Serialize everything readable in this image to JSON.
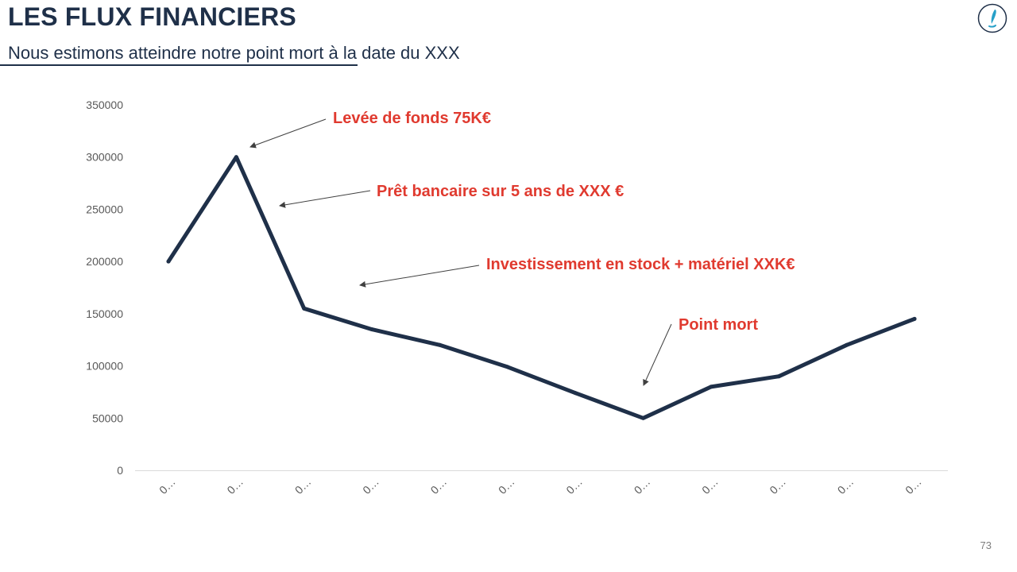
{
  "header": {
    "title": "LES FLUX FINANCIERS",
    "subtitle": "Nous estimons atteindre notre point mort à la date du XXX"
  },
  "logo": {
    "icon": "quill-icon"
  },
  "footer": {
    "page_number": "73"
  },
  "colors": {
    "title": "#1f3049",
    "line": "#1f3049",
    "annotation": "#e03a2f",
    "axis": "#d9d9d9",
    "tick": "#595959",
    "logo": "#27a0c8"
  },
  "chart_data": {
    "type": "line",
    "categories": [
      "0…",
      "0…",
      "0…",
      "0…",
      "0…",
      "0…",
      "0…",
      "0…",
      "0…",
      "0…",
      "0…",
      "0…"
    ],
    "series": [
      {
        "values": [
          200000,
          300000,
          155000,
          135000,
          120000,
          99000,
          74000,
          50000,
          80000,
          90000,
          120000,
          145000
        ]
      }
    ],
    "ylim": [
      0,
      350000
    ],
    "yticks": [
      0,
      50000,
      100000,
      150000,
      200000,
      250000,
      300000,
      350000
    ],
    "grid": false,
    "legend": "none",
    "annotations": [
      {
        "text": "Levée de fonds 75K€"
      },
      {
        "text": "Prêt bancaire sur 5 ans de XXX €"
      },
      {
        "text": "Investissement en stock + matériel XXK€"
      },
      {
        "text": "Point mort"
      }
    ]
  }
}
